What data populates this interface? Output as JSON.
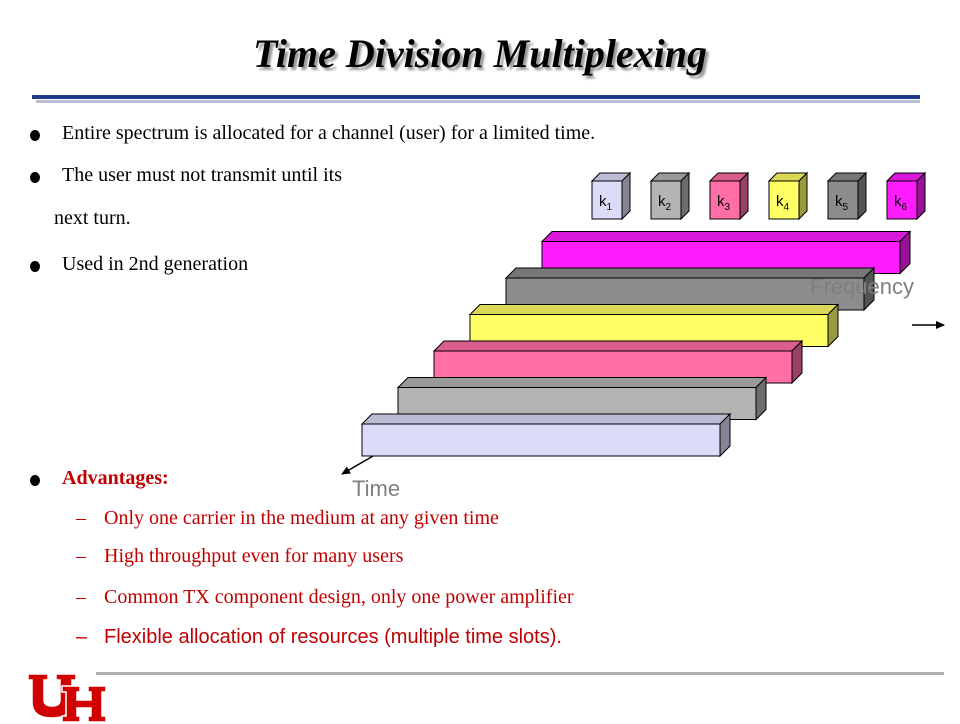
{
  "title": "Time Division Multiplexing",
  "bullets": [
    "Entire spectrum is allocated for a channel (user) for a limited time.",
    "The user must not transmit until its",
    "next turn.",
    "Used in 2nd generation"
  ],
  "advantages": {
    "heading": "Advantages:",
    "items": [
      "Only one carrier in the medium at any given time",
      "High throughput even for many users",
      "Common  TX component design, only one power amplifier",
      "Flexible allocation of resources (multiple time slots)."
    ]
  },
  "diagram": {
    "frequency_label": "Frequency",
    "time_label": "Time",
    "channels": [
      {
        "label": "k",
        "sub": "1",
        "color": "#dcdcf8"
      },
      {
        "label": "k",
        "sub": "2",
        "color": "#b4b4b4"
      },
      {
        "label": "k",
        "sub": "3",
        "color": "#ff6fa6"
      },
      {
        "label": "k",
        "sub": "4",
        "color": "#ffff66"
      },
      {
        "label": "k",
        "sub": "5",
        "color": "#8c8c8c"
      },
      {
        "label": "k",
        "sub": "6",
        "color": "#ff1cff"
      }
    ]
  },
  "colors": {
    "accent_red": "#c00000",
    "title_rule": "#1f3a8a",
    "logo_red": "#d00000"
  },
  "logo": {
    "name": "uh-logo",
    "text": "UH"
  }
}
